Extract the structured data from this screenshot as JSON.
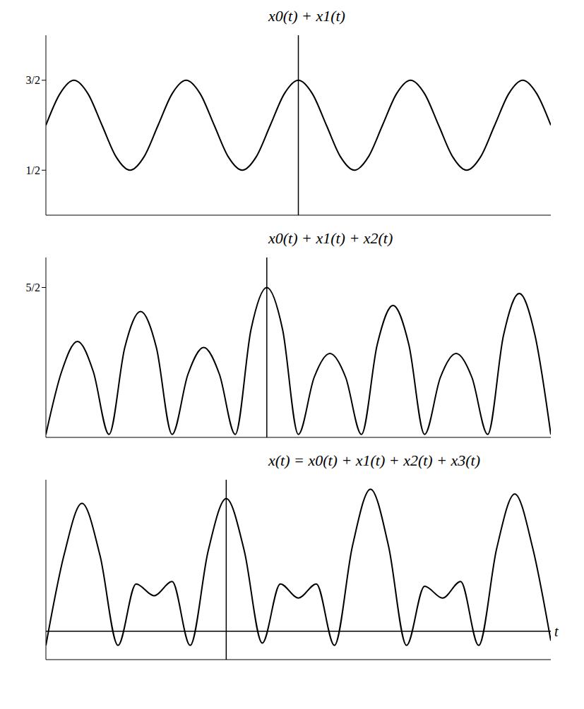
{
  "chart_data": [
    {
      "type": "line",
      "title": "x0(t) + x1(t)",
      "color": "#000000",
      "x": [
        -2.25,
        -2.125,
        -2,
        -1.875,
        -1.75,
        -1.625,
        -1.5,
        -1.375,
        -1.25,
        -1.125,
        -1,
        -0.875,
        -0.75,
        -0.625,
        -0.5,
        -0.375,
        -0.25,
        -0.125,
        0,
        0.125,
        0.25,
        0.375,
        0.5,
        0.625,
        0.75,
        0.875,
        1,
        1.125,
        1.25,
        1.375,
        1.5,
        1.625,
        1.75,
        1.875,
        2,
        2.125,
        2.25
      ],
      "values": [
        1.0,
        1.35,
        1.5,
        1.35,
        1.0,
        0.65,
        0.5,
        0.65,
        1.0,
        1.35,
        1.5,
        1.35,
        1.0,
        0.65,
        0.5,
        0.65,
        1.0,
        1.35,
        1.5,
        1.35,
        1.0,
        0.65,
        0.5,
        0.65,
        1.0,
        1.35,
        1.5,
        1.35,
        1.0,
        0.65,
        0.5,
        0.65,
        1.0,
        1.35,
        1.5,
        1.35,
        1.0
      ],
      "xlim": [
        -2.25,
        2.25
      ],
      "ylim": [
        0,
        2
      ],
      "yticks": [
        {
          "value": 0.5,
          "label": "1/2"
        },
        {
          "value": 1.5,
          "label": "3/2"
        }
      ],
      "tick_labels": "y"
    },
    {
      "type": "line",
      "title": "x0(t) + x1(t) + x2(t)",
      "color": "#000000",
      "x": [
        -3.5,
        -3.25,
        -3,
        -2.75,
        -2.5,
        -2.25,
        -2,
        -1.75,
        -1.5,
        -1.25,
        -1,
        -0.75,
        -0.5,
        -0.25,
        0,
        0.25,
        0.5,
        0.75,
        1,
        1.25,
        1.5,
        1.75,
        2,
        2.25,
        2.5,
        2.75,
        3,
        3.25,
        3.5,
        3.75,
        4,
        4.25,
        4.5
      ],
      "values": [
        0.05,
        1.1,
        1.6,
        1.1,
        0.05,
        1.5,
        2.1,
        1.5,
        0.05,
        1.05,
        1.5,
        1.05,
        0.05,
        1.8,
        2.5,
        1.8,
        0.05,
        1.0,
        1.4,
        1.0,
        0.05,
        1.55,
        2.2,
        1.55,
        0.05,
        1.0,
        1.4,
        1.0,
        0.05,
        1.7,
        2.4,
        1.7,
        0.05
      ],
      "xlim": [
        -3.5,
        4.5
      ],
      "ylim": [
        0,
        3
      ],
      "yticks": [
        {
          "value": 2.5,
          "label": "5/2"
        }
      ],
      "tick_labels": "y"
    },
    {
      "type": "line",
      "title": "x(t) = x0(t) + x1(t) + x2(t) + x3(t)",
      "x_label": "t",
      "color": "#000000",
      "x": [
        -2.5,
        -2.25,
        -2,
        -1.75,
        -1.5,
        -1.25,
        -1,
        -0.75,
        -0.5,
        -0.25,
        0,
        0.25,
        0.5,
        0.75,
        1,
        1.25,
        1.5,
        1.75,
        2,
        2.25,
        2.5,
        2.75,
        3,
        3.25,
        3.5,
        3.75,
        4,
        4.25,
        4.5
      ],
      "values": [
        -0.3,
        1.6,
        2.7,
        1.6,
        -0.3,
        1.0,
        0.75,
        1.05,
        -0.3,
        1.7,
        2.8,
        1.7,
        -0.25,
        1.0,
        0.7,
        1.0,
        -0.3,
        1.8,
        3.0,
        1.8,
        -0.3,
        0.95,
        0.7,
        1.05,
        -0.3,
        1.75,
        2.9,
        1.75,
        -0.2
      ],
      "xlim": [
        -2.5,
        4.5
      ],
      "ylim": [
        -0.6,
        3.2
      ],
      "tick_labels": false
    }
  ]
}
